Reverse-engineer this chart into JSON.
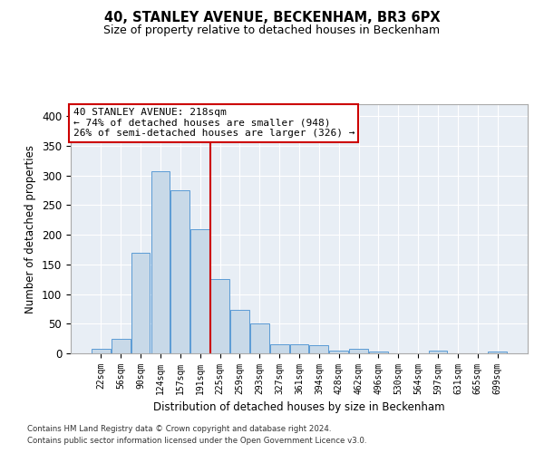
{
  "title": "40, STANLEY AVENUE, BECKENHAM, BR3 6PX",
  "subtitle": "Size of property relative to detached houses in Beckenham",
  "xlabel": "Distribution of detached houses by size in Beckenham",
  "ylabel": "Number of detached properties",
  "bar_labels": [
    "22sqm",
    "56sqm",
    "90sqm",
    "124sqm",
    "157sqm",
    "191sqm",
    "225sqm",
    "259sqm",
    "293sqm",
    "327sqm",
    "361sqm",
    "394sqm",
    "428sqm",
    "462sqm",
    "496sqm",
    "530sqm",
    "564sqm",
    "597sqm",
    "631sqm",
    "665sqm",
    "699sqm"
  ],
  "bar_values": [
    7,
    24,
    170,
    307,
    275,
    210,
    125,
    73,
    50,
    15,
    15,
    14,
    5,
    8,
    3,
    0,
    0,
    4,
    0,
    0,
    3
  ],
  "bar_color": "#c8d9e8",
  "bar_edge_color": "#5b9bd5",
  "vline_x": 5.5,
  "vline_color": "#cc0000",
  "annotation_text": "40 STANLEY AVENUE: 218sqm\n← 74% of detached houses are smaller (948)\n26% of semi-detached houses are larger (326) →",
  "annotation_box_color": "#ffffff",
  "annotation_box_edge": "#cc0000",
  "ylim": [
    0,
    420
  ],
  "yticks": [
    0,
    50,
    100,
    150,
    200,
    250,
    300,
    350,
    400
  ],
  "background_color": "#e8eef5",
  "footer_line1": "Contains HM Land Registry data © Crown copyright and database right 2024.",
  "footer_line2": "Contains public sector information licensed under the Open Government Licence v3.0."
}
